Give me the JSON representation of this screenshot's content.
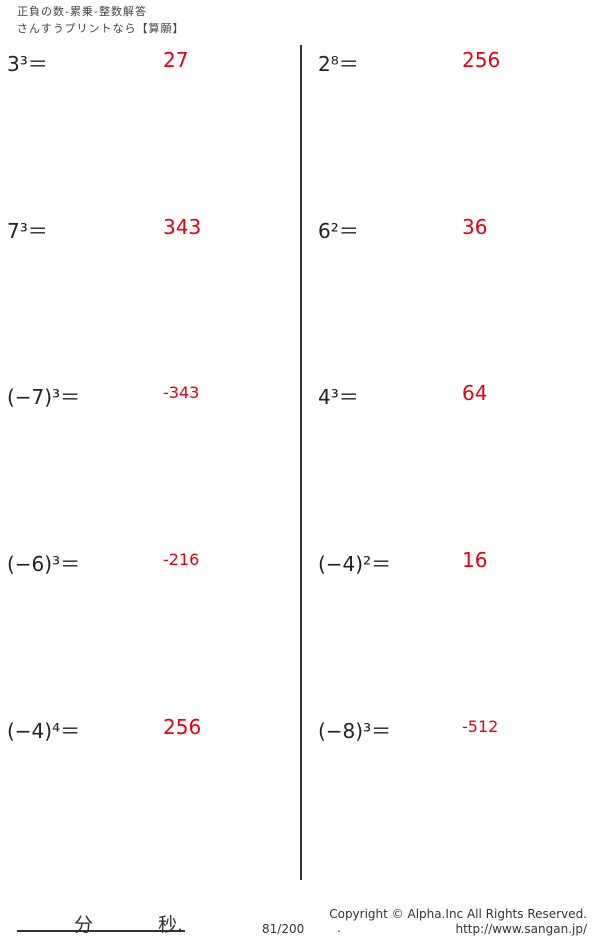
{
  "header": {
    "title": "正負の数-累乗-整数解答",
    "subtitle": "さんすうプリントなら【算願】"
  },
  "problems": [
    {
      "q": "3³＝",
      "a": "27",
      "small": false
    },
    {
      "q": "2⁸＝",
      "a": "256",
      "small": false
    },
    {
      "q": "7³＝",
      "a": "343",
      "small": false
    },
    {
      "q": "6²＝",
      "a": "36",
      "small": false
    },
    {
      "q": "(−7)³＝",
      "a": "-343",
      "small": true
    },
    {
      "q": "4³＝",
      "a": "64",
      "small": false
    },
    {
      "q": "(−6)³＝",
      "a": "-216",
      "small": true
    },
    {
      "q": "(−4)²＝",
      "a": "16",
      "small": false
    },
    {
      "q": "(−4)⁴＝",
      "a": "256",
      "small": false
    },
    {
      "q": "(−8)³＝",
      "a": "-512",
      "small": true
    }
  ],
  "footer": {
    "minutes": "分",
    "seconds": "秒.",
    "page": "81/200",
    "copyright": "Copyright ©  Alpha.Inc All Rights Reserved.",
    "dot": ".",
    "url": "http://www.sangan.jp/"
  }
}
